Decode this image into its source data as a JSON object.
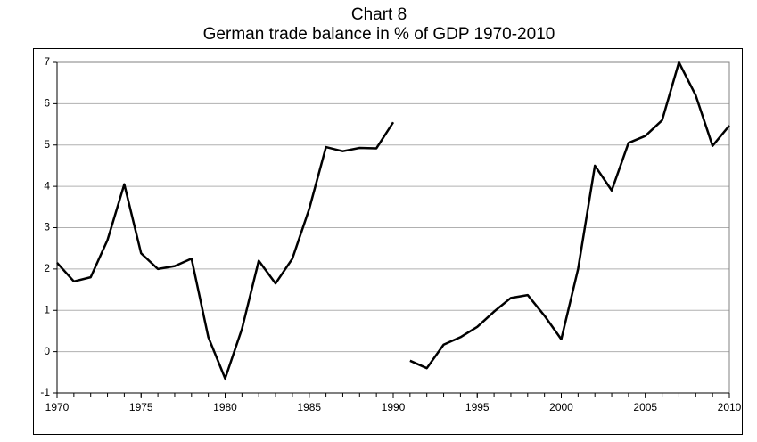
{
  "chart_data": {
    "type": "line",
    "title": "Chart 8",
    "subtitle": "German trade balance in % of GDP 1970-2010",
    "series": [
      {
        "color": "#000000",
        "x": [
          1970,
          1971,
          1972,
          1973,
          1974,
          1975,
          1976,
          1977,
          1978,
          1979,
          1980,
          1981,
          1982,
          1983,
          1984,
          1985,
          1986,
          1987,
          1988,
          1989,
          1990
        ],
        "values": [
          2.15,
          1.7,
          1.8,
          2.7,
          4.05,
          2.38,
          2.0,
          2.07,
          2.25,
          0.35,
          -0.65,
          0.55,
          2.2,
          1.65,
          2.25,
          3.45,
          4.95,
          4.85,
          4.93,
          4.92,
          5.55
        ]
      },
      {
        "color": "#000000",
        "x": [
          1991,
          1992,
          1993,
          1994,
          1995,
          1996,
          1997,
          1998,
          1999,
          2000,
          2001,
          2002,
          2003,
          2004,
          2005,
          2006,
          2007,
          2008,
          2009,
          2010
        ],
        "values": [
          -0.22,
          -0.4,
          0.17,
          0.35,
          0.6,
          0.97,
          1.3,
          1.37,
          0.87,
          0.3,
          2.0,
          4.5,
          3.9,
          5.05,
          5.22,
          5.6,
          7.0,
          6.2,
          4.98,
          5.47
        ]
      }
    ],
    "xlim": [
      1970,
      2010
    ],
    "xticks": [
      1970,
      1975,
      1980,
      1985,
      1990,
      1995,
      2000,
      2005,
      2010
    ],
    "ylim": [
      -1,
      7
    ],
    "yticks": [
      -1,
      0,
      1,
      2,
      3,
      4,
      5,
      6,
      7
    ],
    "grid": true
  }
}
